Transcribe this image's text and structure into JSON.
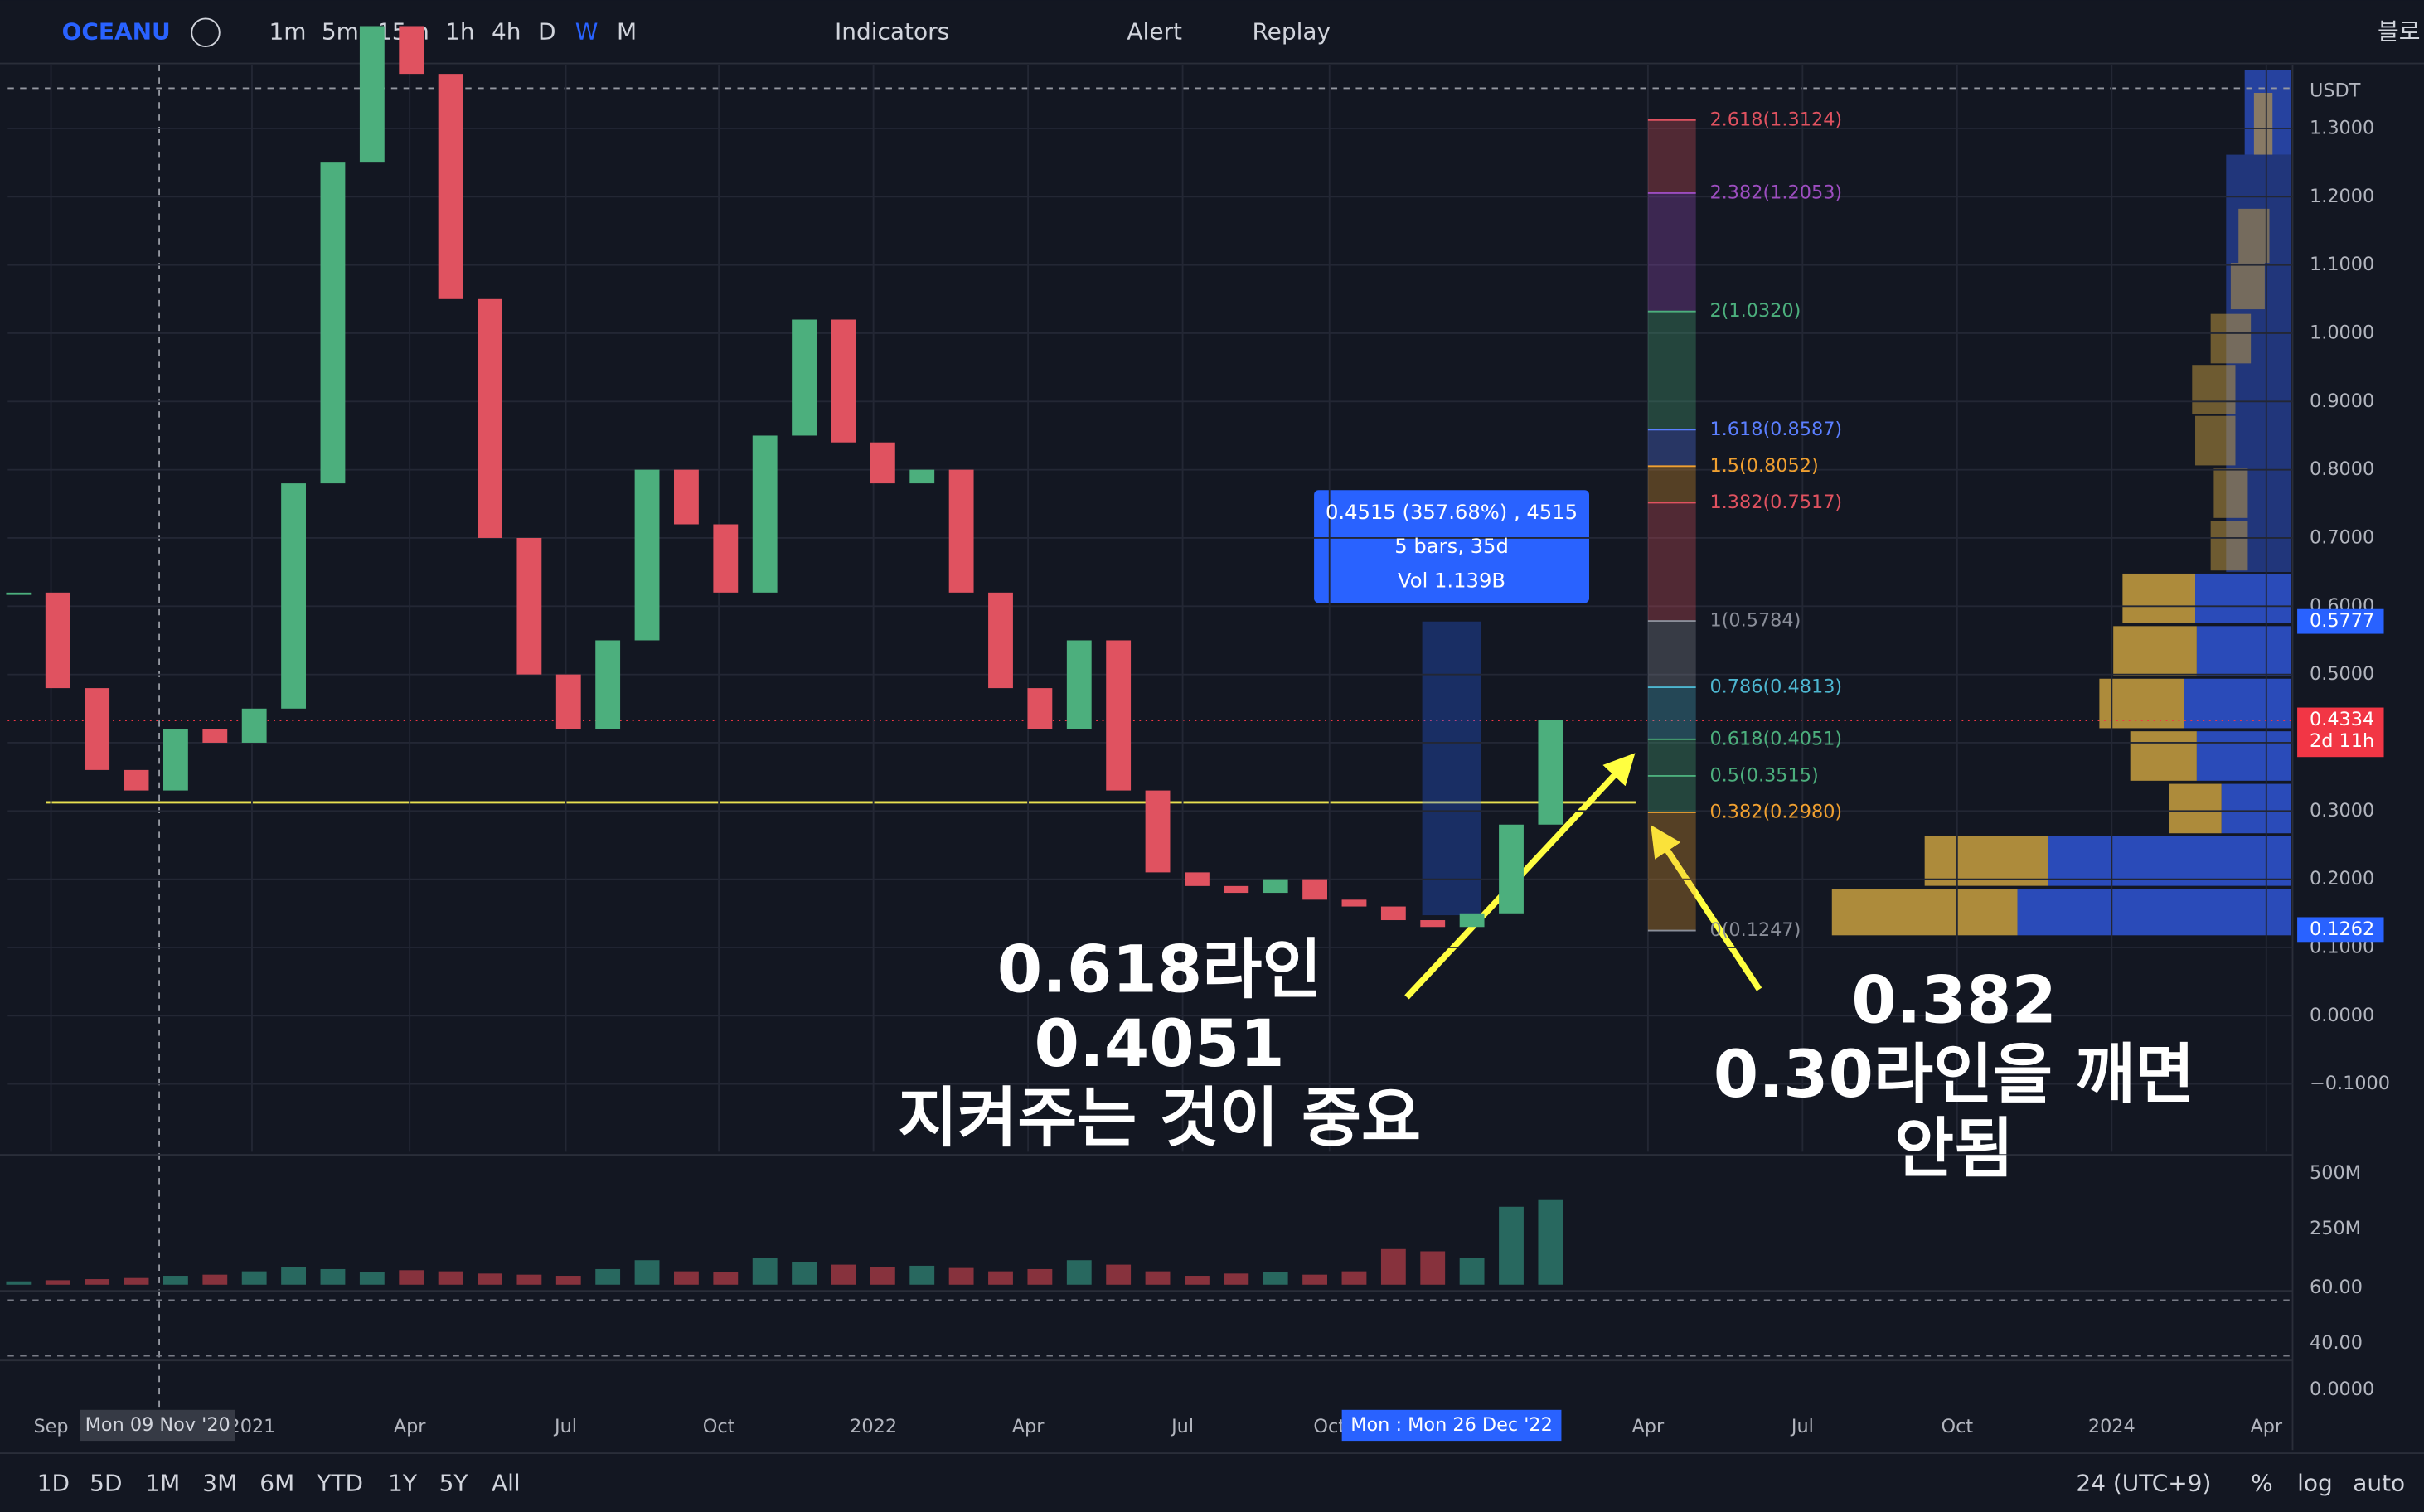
{
  "toolbar": {
    "symbol": "OCEANU",
    "intervals": [
      "1m",
      "5m",
      "15m",
      "1h",
      "4h",
      "D",
      "W",
      "M"
    ],
    "indicators": "Indicators",
    "alert": "Alert",
    "replay": "Replay",
    "right": "블로"
  },
  "bottom_bar": {
    "ranges": [
      "1D",
      "5D",
      "1M",
      "3M",
      "6M",
      "YTD",
      "1Y",
      "5Y",
      "All"
    ],
    "timezone": "24 (UTC+9)",
    "percent": "%",
    "log": "log",
    "auto": "auto"
  },
  "chart": {
    "currency": "USDT",
    "price_ticks": [
      {
        "value": 1.3,
        "label": "1.3000"
      },
      {
        "value": 1.2,
        "label": "1.2000"
      },
      {
        "value": 1.1,
        "label": "1.1000"
      },
      {
        "value": 1,
        "label": "1.0000"
      },
      {
        "value": 0.9,
        "label": "0.9000"
      },
      {
        "value": 0.8,
        "label": "0.8000"
      },
      {
        "value": 0.7,
        "label": "0.7000"
      },
      {
        "value": 0.6,
        "label": "0.6000"
      },
      {
        "value": 0.5,
        "label": "0.5000"
      },
      {
        "value": 0.4,
        "label": "0.4000"
      },
      {
        "value": 0.3,
        "label": "0.3000"
      },
      {
        "value": 0.2,
        "label": "0.2000"
      },
      {
        "value": 0.1,
        "label": "0.1000"
      },
      {
        "value": 0,
        "label": "0.0000"
      },
      {
        "value": -0.1,
        "label": "−0.1000"
      }
    ],
    "time_labels": [
      "Sep",
      "2021",
      "Apr",
      "Jul",
      "Oct",
      "2022",
      "Apr",
      "Jul",
      "Oct",
      "Apr",
      "Jul",
      "Oct",
      "2024",
      "Apr"
    ],
    "crosshair_dates": [
      "Mon 09 Nov '20",
      "Mon :  Mon 26 Dec '22"
    ],
    "price_tags": [
      {
        "value": 0.5777,
        "label": "0.5777",
        "color": "#2962ff"
      },
      {
        "value": 0.4334,
        "label": "0.4334",
        "countdown": "2d 11h",
        "color": "#f23645"
      },
      {
        "value": 0.1262,
        "label": "0.1262",
        "color": "#2962ff"
      }
    ],
    "closes": [
      0.62,
      0.48,
      0.36,
      0.33,
      0.42,
      0.4,
      0.45,
      0.78,
      1.25,
      1.45,
      1.38,
      1.05,
      0.7,
      0.5,
      0.42,
      0.55,
      0.8,
      0.72,
      0.62,
      0.85,
      1.02,
      0.84,
      0.78,
      0.8,
      0.62,
      0.48,
      0.42,
      0.55,
      0.33,
      0.21,
      0.19,
      0.18,
      0.2,
      0.17,
      0.16,
      0.14,
      0.13,
      0.15,
      0.28,
      0.4334
    ],
    "volumes": [
      15,
      20,
      25,
      30,
      40,
      45,
      60,
      80,
      70,
      55,
      65,
      60,
      50,
      45,
      40,
      70,
      110,
      60,
      55,
      120,
      100,
      90,
      80,
      85,
      75,
      60,
      70,
      110,
      90,
      60,
      40,
      50,
      55,
      45,
      60,
      160,
      150,
      120,
      350,
      380
    ],
    "volume_ticks": [
      {
        "value": 500,
        "label": "500M"
      },
      {
        "value": 250,
        "label": "250M"
      }
    ],
    "rsi_ticks": [
      {
        "value": 60,
        "label": "60.00"
      },
      {
        "value": 40,
        "label": "40.00"
      }
    ],
    "macd_tick": "0.0000",
    "fib_levels": [
      {
        "label": "2.618(1.3124)",
        "price": 1.3124,
        "color": "#e05260"
      },
      {
        "label": "2.382(1.2053)",
        "price": 1.2053,
        "color": "#9c4dbf"
      },
      {
        "label": "2(1.0320)",
        "price": 1.032,
        "color": "#4caf7d"
      },
      {
        "label": "1.618(0.8587)",
        "price": 0.8587,
        "color": "#5b7fff"
      },
      {
        "label": "1.5(0.8052)",
        "price": 0.8052,
        "color": "#f0a030"
      },
      {
        "label": "1.382(0.7517)",
        "price": 0.7517,
        "color": "#e05260"
      },
      {
        "label": "1(0.5784)",
        "price": 0.5784,
        "color": "#8a8e99"
      },
      {
        "label": "0.786(0.4813)",
        "price": 0.4813,
        "color": "#4db6d0"
      },
      {
        "label": "0.618(0.4051)",
        "price": 0.4051,
        "color": "#4caf7d"
      },
      {
        "label": "0.5(0.3515)",
        "price": 0.3515,
        "color": "#4caf7d"
      },
      {
        "label": "0.382(0.2980)",
        "price": 0.298,
        "color": "#f0a030"
      },
      {
        "label": "0(0.1247)",
        "price": 0.1247,
        "color": "#8a8e99"
      }
    ],
    "measure": {
      "lines": [
        "0.4515 (357.68%) , 4515",
        "5 bars, 35d",
        "Vol 1.139B"
      ]
    },
    "annotations": [
      {
        "lines": [
          "0.618라인",
          "0.4051",
          "지켜주는 것이 중요"
        ]
      },
      {
        "lines": [
          "0.382",
          "0.30라인을 깨면",
          "안됨"
        ]
      }
    ]
  }
}
